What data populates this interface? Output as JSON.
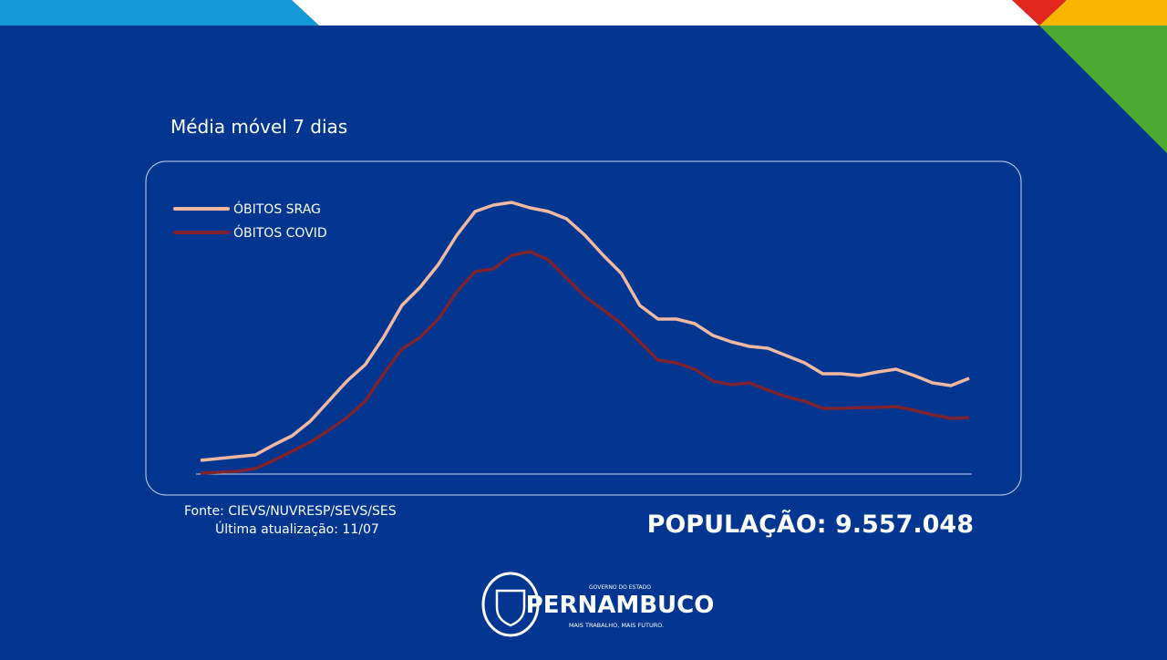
{
  "chart_data": {
    "type": "line",
    "title": "Média móvel 7 dias",
    "categories": [
      null,
      null,
      null,
      null,
      null,
      null,
      null,
      null,
      null,
      null,
      null,
      null,
      null,
      null,
      null,
      null,
      null,
      null,
      null,
      null,
      null,
      null,
      null,
      null,
      null,
      null,
      null,
      null,
      null,
      null,
      null,
      null,
      null,
      null,
      null,
      null,
      null,
      null,
      null,
      null,
      null,
      null,
      null
    ],
    "ylim": [
      0,
      320
    ],
    "legend": "top-left",
    "series": [
      {
        "name": "ÓBITOS SRAG",
        "color": "#f2b9a2",
        "values": [
          15,
          17,
          19,
          21,
          32,
          42,
          58,
          80,
          102,
          120,
          150,
          185,
          205,
          230,
          262,
          288,
          295,
          298,
          292,
          288,
          280,
          262,
          240,
          220,
          185,
          170,
          170,
          165,
          152,
          145,
          140,
          138,
          130,
          122,
          110,
          110,
          108,
          112,
          115,
          108,
          100,
          97,
          105
        ]
      },
      {
        "name": "ÓBITOS COVID",
        "color": "#7d2430",
        "values": [
          1,
          2,
          3,
          6,
          15,
          25,
          35,
          48,
          62,
          80,
          110,
          137,
          150,
          170,
          200,
          222,
          225,
          240,
          244,
          235,
          215,
          195,
          180,
          165,
          145,
          125,
          122,
          115,
          102,
          98,
          100,
          92,
          85,
          80,
          72,
          72,
          73,
          73,
          74,
          70,
          65,
          61,
          62
        ]
      }
    ]
  },
  "source": "Fonte: CIEVS/NUVRESP/SEVS/SES",
  "updated": "Última atualização: 11/07",
  "population": "POPULAÇÃO: 9.557.048",
  "logo": {
    "top": "GOVERNO DO ESTADO",
    "name": "PERNAMBUCO",
    "slogan": "MAIS TRABALHO, MAIS FUTURO."
  }
}
